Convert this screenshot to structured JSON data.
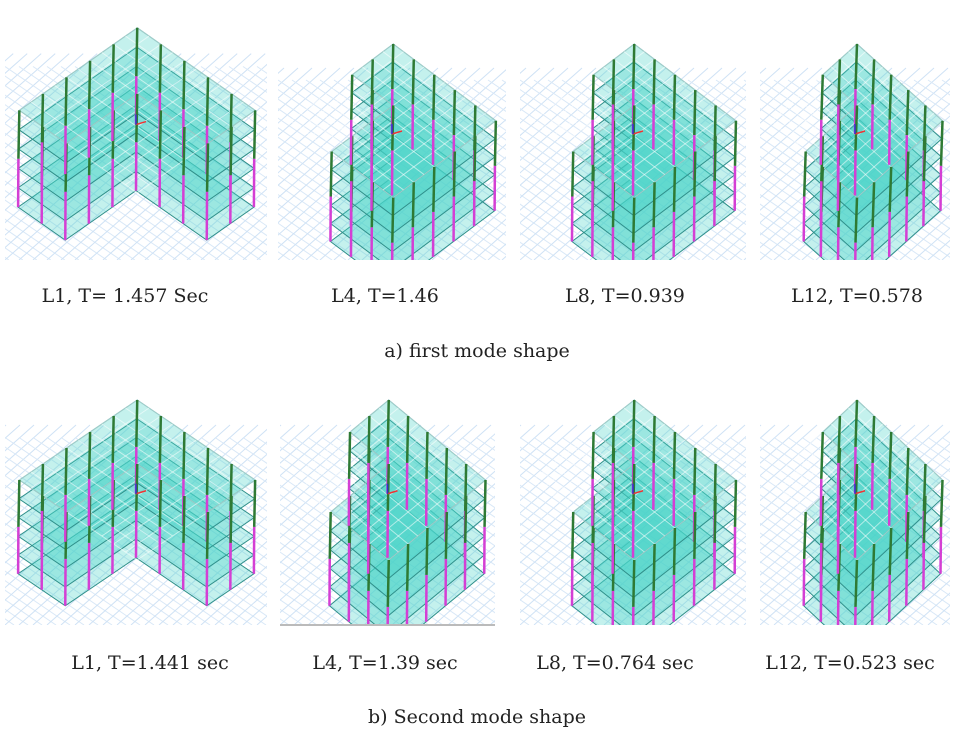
{
  "figure": {
    "rows": [
      {
        "panels": [
          {
            "label": "L1, T= 1.457 Sec"
          },
          {
            "label": "L4, T=1.46"
          },
          {
            "label": "L8, T=0.939"
          },
          {
            "label": "L12, T=0.578"
          }
        ],
        "caption": "a) first mode shape"
      },
      {
        "panels": [
          {
            "label": "L1, T=1.441 sec"
          },
          {
            "label": "L4, T=1.39 sec"
          },
          {
            "label": "L8, T=0.764 sec"
          },
          {
            "label": "L12, T=0.523 sec"
          }
        ],
        "caption": "b) Second mode shape"
      }
    ]
  }
}
